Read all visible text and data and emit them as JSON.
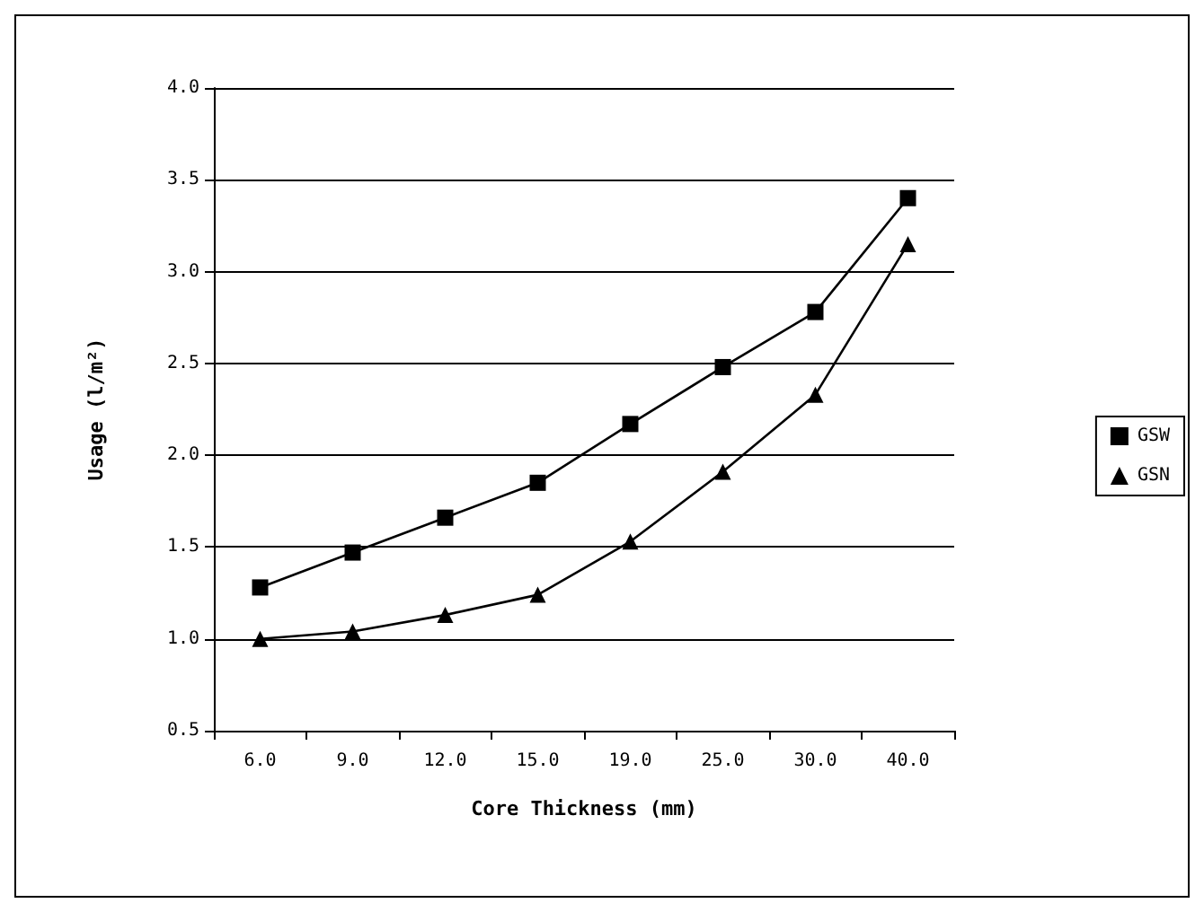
{
  "chart_data": {
    "type": "line",
    "xlabel": "Core Thickness (mm)",
    "ylabel": "Usage (l/m²)",
    "categories": [
      "6.0",
      "9.0",
      "12.0",
      "15.0",
      "19.0",
      "25.0",
      "30.0",
      "40.0"
    ],
    "series": [
      {
        "name": "GSW",
        "color": "#000000",
        "marker": "square",
        "values": [
          1.28,
          1.47,
          1.66,
          1.85,
          2.17,
          2.48,
          2.78,
          3.4
        ]
      },
      {
        "name": "GSN",
        "color": "#000000",
        "marker": "triangle",
        "values": [
          1.0,
          1.04,
          1.13,
          1.24,
          1.53,
          1.91,
          2.33,
          3.15
        ]
      }
    ],
    "ylim": [
      0.5,
      4.0
    ],
    "yticks": [
      0.5,
      {
        "value": 1,
        "label": "1.0"
      },
      1.5,
      {
        "value": 2,
        "label": "2.0"
      },
      2.5,
      {
        "value": 3,
        "label": "3.0"
      },
      3.5,
      {
        "value": 4,
        "label": "4.0"
      }
    ],
    "grid": "y",
    "legend": "right"
  }
}
